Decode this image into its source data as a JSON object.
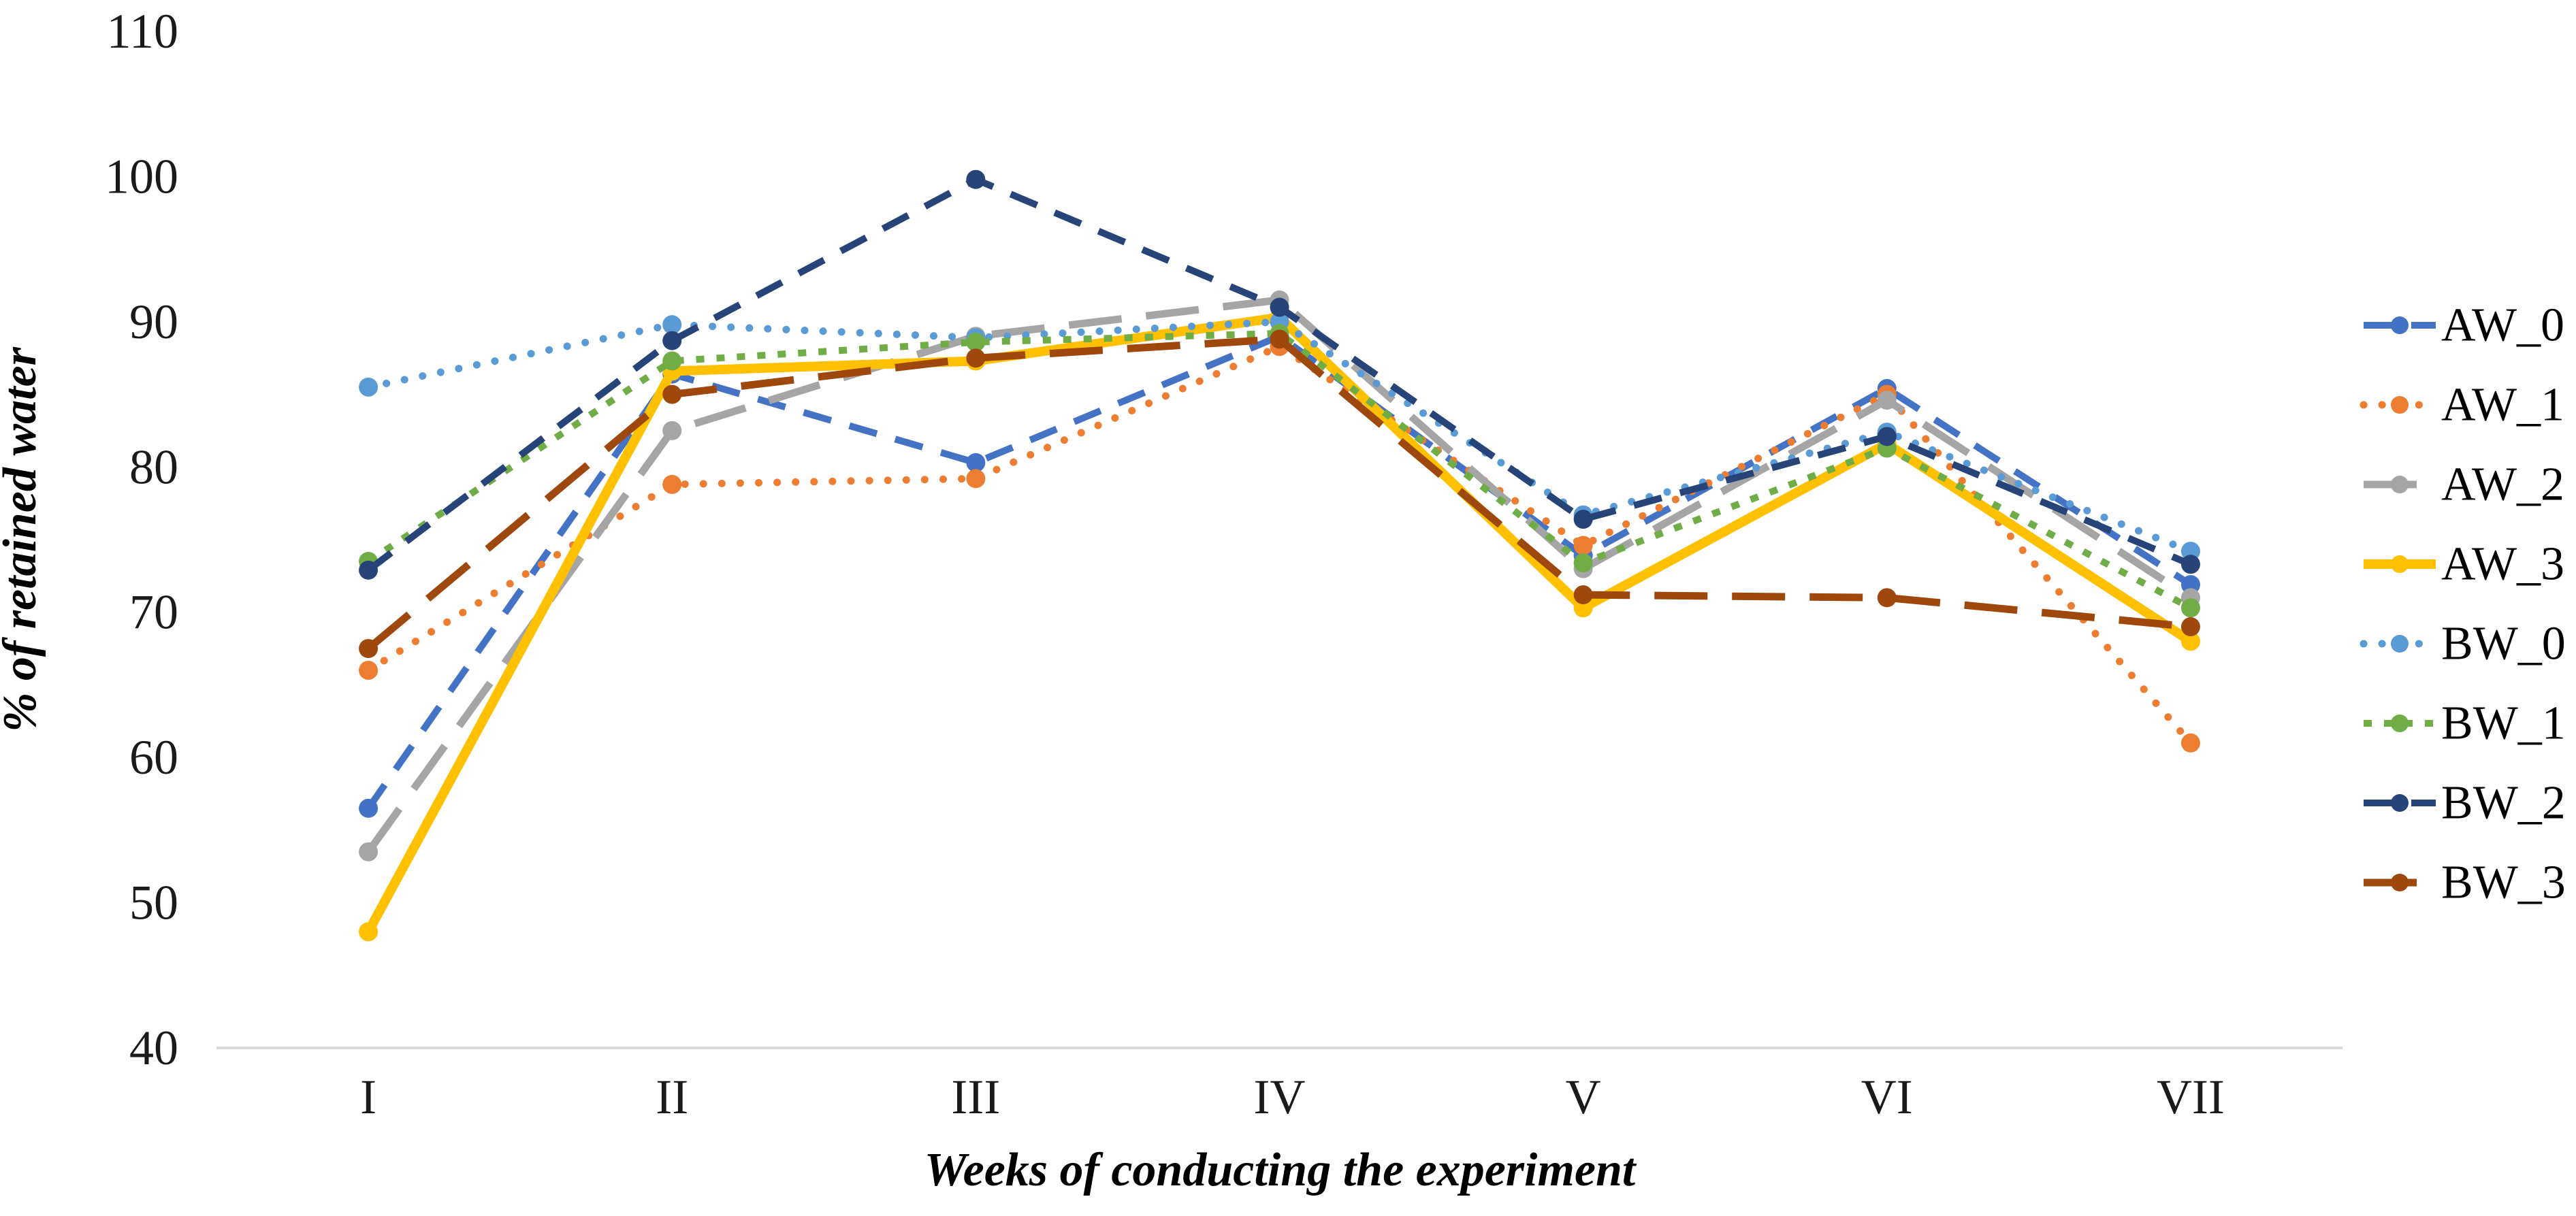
{
  "chart_data": {
    "type": "line",
    "title": "",
    "xlabel": "Weeks of conducting the experiment",
    "ylabel": "% of retained water",
    "x_categories": [
      "I",
      "II",
      "III",
      "IV",
      "V",
      "VI",
      "VII"
    ],
    "y_ticks": [
      110,
      100,
      90,
      80,
      70,
      60,
      50,
      40
    ],
    "ylim": [
      40,
      110
    ],
    "grid": "baseline-only",
    "legend_position": "right",
    "axis_line_color": "#D9D9D9",
    "text_color": "#1a1a1a",
    "series": [
      {
        "name": "AW_0",
        "color": "#4472C4",
        "line_style": "dash",
        "marker": "circle",
        "values": [
          56.5,
          86.4,
          80.3,
          89.0,
          73.9,
          85.4,
          71.9
        ]
      },
      {
        "name": "AW_1",
        "color": "#ED7D31",
        "line_style": "round-dot",
        "marker": "circle",
        "values": [
          66.0,
          78.8,
          79.2,
          88.3,
          74.6,
          85.0,
          61.0
        ]
      },
      {
        "name": "AW_2",
        "color": "#A5A5A5",
        "line_style": "long-dash",
        "marker": "circle",
        "values": [
          53.5,
          82.5,
          89.0,
          91.5,
          73.0,
          84.6,
          71.0
        ]
      },
      {
        "name": "AW_3",
        "color": "#FFC000",
        "line_style": "solid",
        "marker": "circle",
        "values": [
          48.0,
          86.6,
          87.3,
          90.3,
          70.3,
          81.6,
          68.0
        ]
      },
      {
        "name": "BW_0",
        "color": "#5B9BD5",
        "line_style": "round-dot",
        "marker": "circle",
        "values": [
          85.5,
          89.8,
          88.9,
          90.0,
          76.7,
          82.4,
          74.2
        ]
      },
      {
        "name": "BW_1",
        "color": "#70AD47",
        "line_style": "square-dot",
        "marker": "circle",
        "values": [
          73.5,
          87.3,
          88.6,
          89.2,
          73.4,
          81.3,
          70.3
        ]
      },
      {
        "name": "BW_2",
        "color": "#264478",
        "line_style": "dash",
        "marker": "circle",
        "values": [
          72.9,
          88.7,
          99.8,
          91.0,
          76.4,
          82.1,
          73.3
        ]
      },
      {
        "name": "BW_3",
        "color": "#9E480E",
        "line_style": "long-dash",
        "marker": "circle",
        "values": [
          67.5,
          85.0,
          87.5,
          88.8,
          71.2,
          71.0,
          69.0
        ]
      }
    ]
  }
}
